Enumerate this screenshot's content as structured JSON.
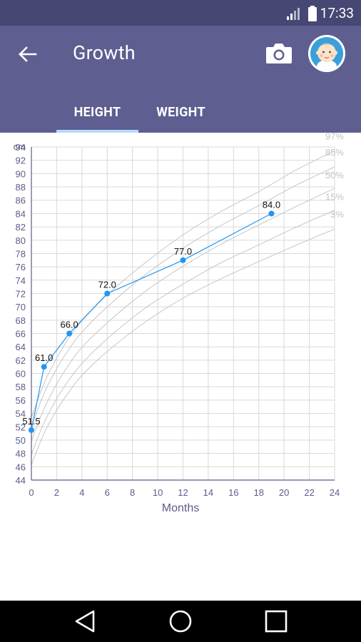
{
  "status_bar": {
    "time": "17:33",
    "signal_icon": "signal-icon",
    "battery_icon": "battery-icon"
  },
  "app_bar": {
    "title": "Growth",
    "back_icon": "arrow-back-icon",
    "camera_icon": "camera-icon",
    "avatar_icon": "baby-avatar-icon"
  },
  "tabs": [
    {
      "label": "HEIGHT",
      "selected": true
    },
    {
      "label": "WEIGHT",
      "selected": false
    }
  ],
  "chart_data": {
    "type": "line",
    "title": "",
    "xlabel": "Months",
    "ylabel": "cm",
    "xlim": [
      0,
      24
    ],
    "ylim": [
      44,
      94
    ],
    "x_ticks": [
      0,
      2,
      4,
      6,
      8,
      10,
      12,
      14,
      16,
      18,
      20,
      22,
      24
    ],
    "y_ticks": [
      44,
      46,
      48,
      50,
      52,
      54,
      56,
      58,
      60,
      62,
      64,
      66,
      68,
      70,
      72,
      74,
      76,
      78,
      80,
      82,
      84,
      86,
      88,
      90,
      92,
      94
    ],
    "grid": true,
    "percentile_months": [
      0,
      1,
      2,
      3,
      4,
      6,
      9,
      12,
      15,
      18,
      21,
      24
    ],
    "percentiles": [
      {
        "name": "97%",
        "values": [
          53.4,
          58.5,
          62.3,
          65.4,
          67.9,
          71.8,
          76.6,
          80.8,
          84.3,
          87.3,
          90.6,
          93.4
        ]
      },
      {
        "name": "85%",
        "values": [
          52.0,
          57.0,
          60.7,
          63.7,
          66.2,
          70.0,
          74.8,
          78.8,
          82.2,
          85.2,
          88.3,
          91.0
        ]
      },
      {
        "name": "50%",
        "values": [
          49.9,
          54.7,
          58.4,
          61.4,
          63.9,
          67.6,
          72.3,
          76.1,
          79.4,
          82.3,
          85.1,
          87.8
        ]
      },
      {
        "name": "15%",
        "values": [
          47.9,
          52.6,
          56.2,
          59.1,
          61.5,
          65.2,
          69.8,
          73.4,
          76.6,
          79.3,
          82.0,
          84.5
        ]
      },
      {
        "name": "3%",
        "values": [
          46.3,
          51.0,
          54.5,
          57.3,
          59.7,
          63.3,
          67.7,
          71.3,
          74.2,
          76.8,
          79.3,
          81.7
        ]
      }
    ],
    "series": [
      {
        "x": [
          0,
          1,
          3,
          6,
          12,
          19
        ],
        "values": [
          51.5,
          61.0,
          66.0,
          72.0,
          77.0,
          84.0
        ],
        "labels": [
          "51.5",
          "61.0",
          "66.0",
          "72.0",
          "77.0",
          "84.0"
        ],
        "color": "#2196f3"
      }
    ],
    "grid_color": "#d9d9d9",
    "axis_color": "#5c5c8a",
    "percentile_color": "#c6c6c6"
  },
  "nav_bar": {
    "back_icon": "nav-back-icon",
    "home_icon": "nav-home-icon",
    "recents_icon": "nav-recents-icon"
  }
}
